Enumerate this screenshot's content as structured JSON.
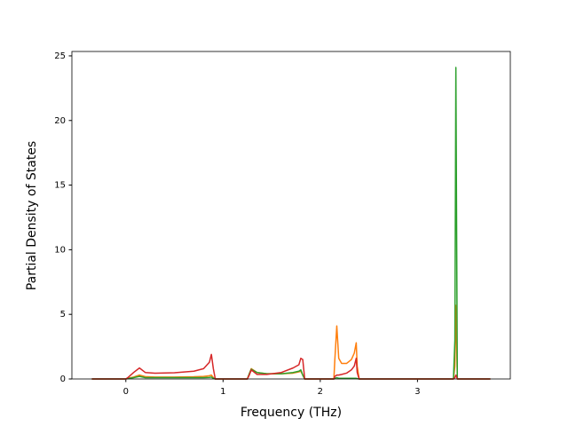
{
  "chart_data": {
    "type": "line",
    "xlabel": "Frequency (THz)",
    "ylabel": "Partial Density of States",
    "x": [
      -0.35,
      0.0,
      0.02,
      0.08,
      0.14,
      0.2,
      0.3,
      0.5,
      0.7,
      0.8,
      0.86,
      0.88,
      0.9,
      0.92,
      1.25,
      1.27,
      1.29,
      1.35,
      1.45,
      1.6,
      1.72,
      1.78,
      1.8,
      1.82,
      1.84,
      2.14,
      2.15,
      2.17,
      2.19,
      2.22,
      2.27,
      2.32,
      2.35,
      2.37,
      2.38,
      2.4,
      3.37,
      3.385,
      3.395,
      3.41,
      3.75
    ],
    "series": [
      {
        "color": "#ff7f0e",
        "values": [
          0,
          0,
          0.05,
          0.15,
          0.3,
          0.18,
          0.15,
          0.15,
          0.17,
          0.2,
          0.25,
          0.3,
          0.1,
          0,
          0,
          0.4,
          0.8,
          0.5,
          0.4,
          0.4,
          0.45,
          0.55,
          0.6,
          0.3,
          0,
          0,
          1.5,
          4.1,
          1.6,
          1.2,
          1.2,
          1.5,
          2.0,
          2.8,
          1.0,
          0,
          0,
          1.0,
          5.7,
          0,
          0
        ]
      },
      {
        "color": "#2ca02c",
        "values": [
          0,
          0,
          0.03,
          0.1,
          0.2,
          0.1,
          0.1,
          0.1,
          0.1,
          0.1,
          0.12,
          0.15,
          0.05,
          0,
          0,
          0.4,
          0.75,
          0.5,
          0.4,
          0.4,
          0.5,
          0.6,
          0.7,
          0.3,
          0,
          0,
          0.05,
          0.1,
          0.05,
          0.05,
          0.05,
          0.05,
          0.05,
          0.05,
          0.03,
          0,
          0,
          3,
          24.1,
          0,
          0
        ]
      },
      {
        "color": "#d62728",
        "values": [
          0,
          0,
          0.1,
          0.5,
          0.85,
          0.5,
          0.45,
          0.48,
          0.6,
          0.8,
          1.3,
          1.9,
          0.8,
          0,
          0,
          0.3,
          0.7,
          0.35,
          0.35,
          0.5,
          0.85,
          1.1,
          1.6,
          1.5,
          0,
          0,
          0.2,
          0.3,
          0.3,
          0.35,
          0.45,
          0.7,
          1.0,
          1.6,
          0.5,
          0,
          0,
          0.1,
          0.3,
          0,
          0
        ]
      }
    ],
    "xlim": [
      -0.555,
      3.955
    ],
    "xticks": [
      0,
      1,
      2,
      3
    ],
    "ylim": [
      0,
      25.34
    ],
    "yticks": [
      0,
      5,
      10,
      15,
      20,
      25
    ]
  }
}
